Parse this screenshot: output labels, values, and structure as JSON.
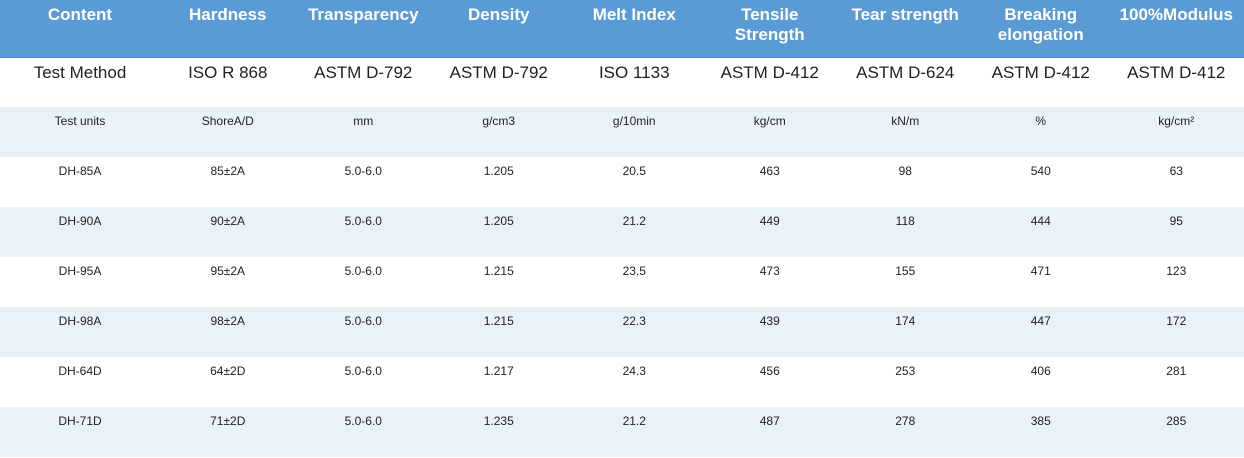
{
  "table": {
    "columns": [
      "Content",
      "Hardness",
      "Transparency",
      "Density",
      "Melt Index",
      "Tensile Strength",
      "Tear strength",
      "Breaking elongation",
      "100%Modulus"
    ],
    "method_row": {
      "label": "Test Method",
      "values": [
        "ISO R 868",
        "ASTM D-792",
        "ASTM D-792",
        "ISO 1133",
        "ASTM D-412",
        "ASTM D-624",
        "ASTM D-412",
        "ASTM D-412"
      ]
    },
    "units_row": {
      "label": "Test units",
      "values": [
        "ShoreA/D",
        "mm",
        "g/cm3",
        "g/10min",
        "kg/cm",
        "kN/m",
        "%",
        "kg/cm²"
      ]
    },
    "rows": [
      {
        "name": "DH-85A",
        "values": [
          "85±2A",
          "5.0-6.0",
          "1.205",
          "20.5",
          "463",
          "98",
          "540",
          "63"
        ]
      },
      {
        "name": "DH-90A",
        "values": [
          "90±2A",
          "5.0-6.0",
          "1.205",
          "21.2",
          "449",
          "118",
          "444",
          "95"
        ]
      },
      {
        "name": "DH-95A",
        "values": [
          "95±2A",
          "5.0-6.0",
          "1.215",
          "23.5",
          "473",
          "155",
          "471",
          "123"
        ]
      },
      {
        "name": "DH-98A",
        "values": [
          "98±2A",
          "5.0-6.0",
          "1.215",
          "22.3",
          "439",
          "174",
          "447",
          "172"
        ]
      },
      {
        "name": "DH-64D",
        "values": [
          "64±2D",
          "5.0-6.0",
          "1.217",
          "24.3",
          "456",
          "253",
          "406",
          "281"
        ]
      },
      {
        "name": "DH-71D",
        "values": [
          "71±2D",
          "5.0-6.0",
          "1.235",
          "21.2",
          "487",
          "278",
          "385",
          "285"
        ]
      }
    ],
    "colors": {
      "header_bg": "#5B9BD5",
      "header_border": "#4D8AC6",
      "header_text": "#FFFFFF",
      "band_bg": "#EAF1F9",
      "row_bg": "#FFFFFF",
      "text": "#1F1F1F"
    }
  }
}
